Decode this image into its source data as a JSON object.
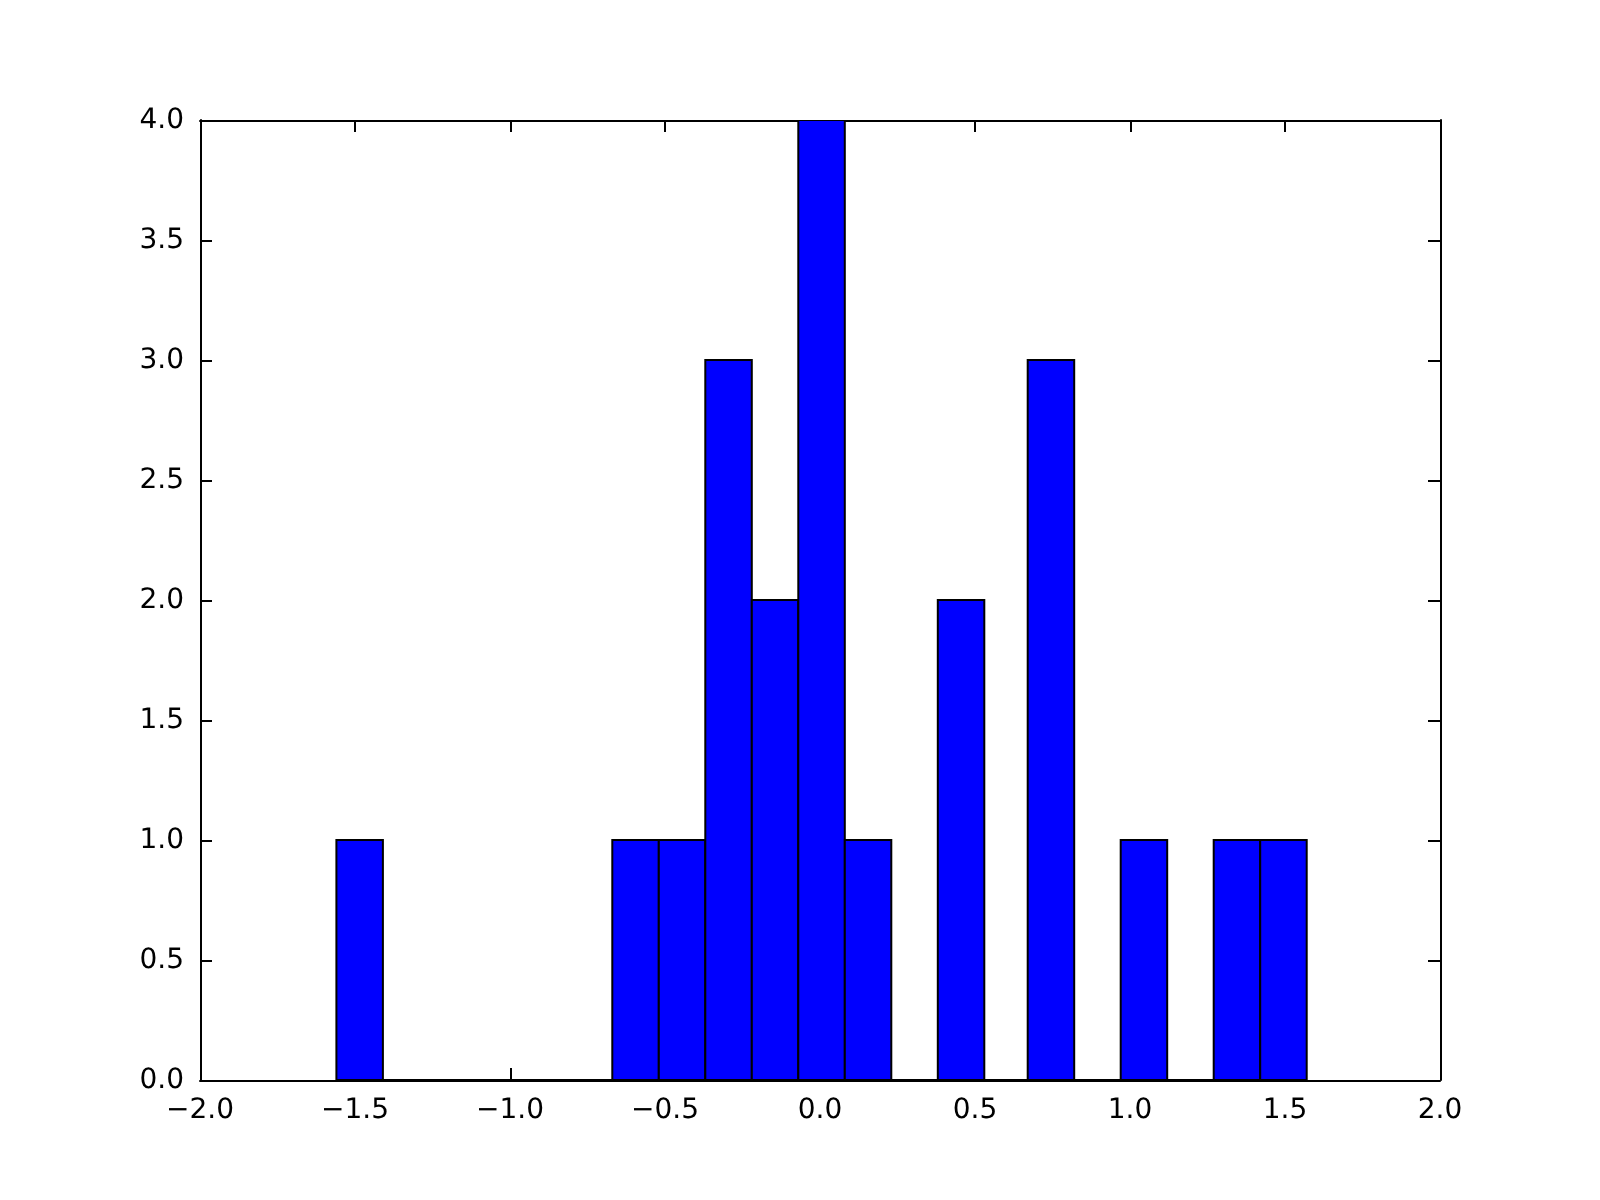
{
  "chart_data": {
    "type": "histogram",
    "color": "#0000ff",
    "bins": [
      -1.56,
      -1.41,
      -0.67,
      -0.52,
      -0.37,
      -0.22,
      -0.07,
      0.08,
      0.23,
      0.38,
      0.53,
      0.67,
      0.82,
      0.97,
      1.12,
      1.27,
      1.42,
      1.57
    ],
    "values": [
      1,
      0,
      1,
      1,
      3,
      2,
      4,
      1,
      0,
      2,
      0,
      3,
      0,
      1,
      0,
      1,
      1
    ],
    "xlim": [
      -2,
      2
    ],
    "xticks": [
      {
        "value": -2,
        "label": "−2.0"
      },
      {
        "value": -1.5,
        "label": "−1.5"
      },
      {
        "value": -1,
        "label": "−1.0"
      },
      {
        "value": -0.5,
        "label": "−0.5"
      },
      {
        "value": 0,
        "label": "0.0"
      },
      {
        "value": 0.5,
        "label": "0.5"
      },
      {
        "value": 1,
        "label": "1.0"
      },
      {
        "value": 1.5,
        "label": "1.5"
      },
      {
        "value": 2,
        "label": "2.0"
      }
    ],
    "ylim": [
      0,
      4
    ],
    "yticks": [
      {
        "value": 0,
        "label": "0.0"
      },
      {
        "value": 0.5,
        "label": "0.5"
      },
      {
        "value": 1,
        "label": "1.0"
      },
      {
        "value": 1.5,
        "label": "1.5"
      },
      {
        "value": 2,
        "label": "2.0"
      },
      {
        "value": 2.5,
        "label": "2.5"
      },
      {
        "value": 3,
        "label": "3.0"
      },
      {
        "value": 3.5,
        "label": "3.5"
      },
      {
        "value": 4,
        "label": "4.0"
      }
    ],
    "grid": false
  }
}
